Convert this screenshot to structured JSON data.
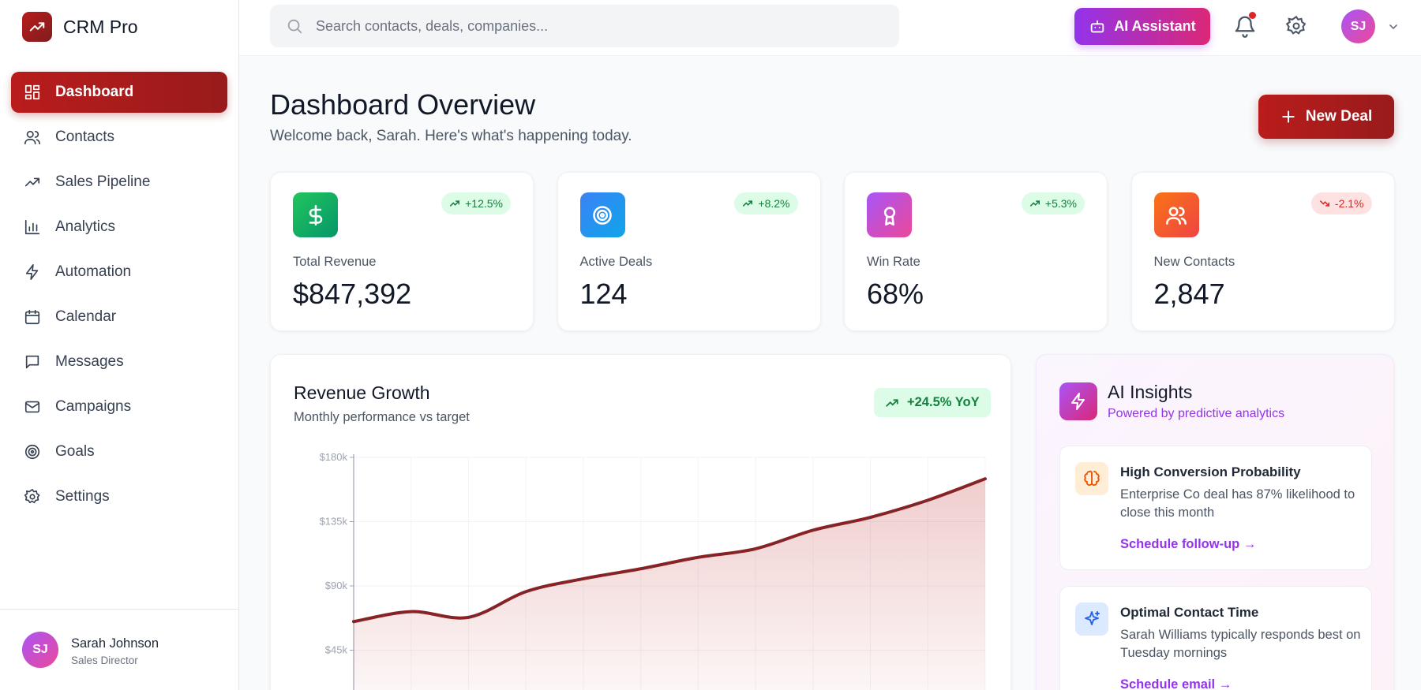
{
  "app": {
    "name": "CRM Pro"
  },
  "search": {
    "placeholder": "Search contacts, deals, companies..."
  },
  "header": {
    "ai_button": "AI Assistant"
  },
  "sidebar": {
    "nav": [
      "Dashboard",
      "Contacts",
      "Sales Pipeline",
      "Analytics",
      "Automation",
      "Calendar",
      "Messages",
      "Campaigns",
      "Goals",
      "Settings"
    ],
    "active_index": 0,
    "user": {
      "initials": "SJ",
      "name": "Sarah Johnson",
      "role": "Sales Director"
    }
  },
  "page": {
    "title": "Dashboard Overview",
    "subtitle": "Welcome back, Sarah. Here's what's happening today.",
    "action": "New Deal"
  },
  "stats": [
    {
      "label": "Total Revenue",
      "value": "$847,392",
      "change": "+12.5%",
      "trend": "up",
      "colors": [
        "#22c55e",
        "#059669"
      ]
    },
    {
      "label": "Active Deals",
      "value": "124",
      "change": "+8.2%",
      "trend": "up",
      "colors": [
        "#3b82f6",
        "#0ea5e9"
      ]
    },
    {
      "label": "Win Rate",
      "value": "68%",
      "change": "+5.3%",
      "trend": "up",
      "colors": [
        "#a855f7",
        "#ec4899"
      ]
    },
    {
      "label": "New Contacts",
      "value": "2,847",
      "change": "-2.1%",
      "trend": "down",
      "colors": [
        "#f97316",
        "#ef4444"
      ]
    }
  ],
  "chart_data": {
    "type": "line",
    "title": "Revenue Growth",
    "subtitle": "Monthly performance vs target",
    "badge": "+24.5% YoY",
    "values": [
      65000,
      72000,
      68000,
      86000,
      95000,
      102000,
      110000,
      116000,
      129000,
      138000,
      150000,
      165000
    ],
    "color": "#9b1c1c",
    "ylim": [
      0,
      180000
    ],
    "yticks": [
      {
        "value": 45000,
        "label": "$45k"
      },
      {
        "value": 90000,
        "label": "$90k"
      },
      {
        "value": 135000,
        "label": "$135k"
      },
      {
        "value": 180000,
        "label": "$180k"
      }
    ],
    "grid": true
  },
  "insights": {
    "title": "AI Insights",
    "subtitle": "Powered by predictive analytics",
    "items": [
      {
        "title": "High Conversion Probability",
        "text": "Enterprise Co deal has 87% likelihood to close this month",
        "action": "Schedule follow-up →"
      },
      {
        "title": "Optimal Contact Time",
        "text": "Sarah Williams typically responds best on Tuesday mornings",
        "action": "Schedule email →"
      }
    ]
  }
}
